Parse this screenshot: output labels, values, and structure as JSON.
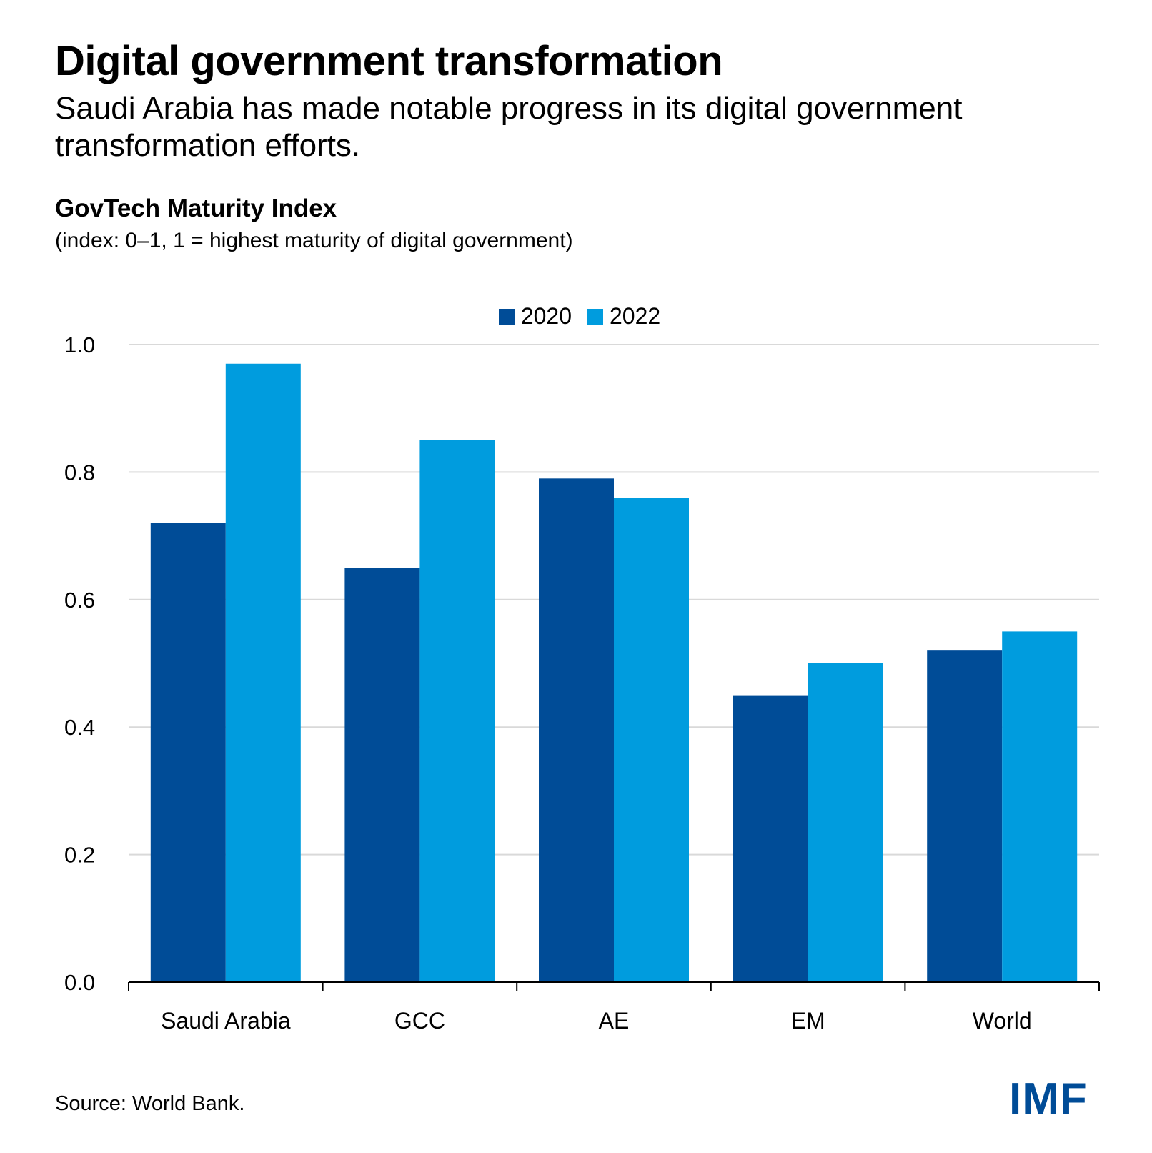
{
  "header": {
    "title": "Digital government transformation",
    "subtitle": "Saudi Arabia has made notable progress in its digital government transformation efforts."
  },
  "footer": {
    "source": "Source: World Bank.",
    "logo": "IMF"
  },
  "colors": {
    "series_2020": "#004C97",
    "series_2022": "#009CDE",
    "grid": "#D9D9D9",
    "axis": "#000000",
    "logo": "#004C97"
  },
  "chart_data": {
    "type": "bar",
    "title": "GovTech Maturity Index",
    "subtitle": "(index: 0–1, 1 = highest maturity of digital government)",
    "xlabel": "",
    "ylabel": "",
    "ylim": [
      0,
      1.0
    ],
    "yticks": [
      0.0,
      0.2,
      0.4,
      0.6,
      0.8,
      1.0
    ],
    "ytick_labels": [
      "0.0",
      "0.2",
      "0.4",
      "0.6",
      "0.8",
      "1.0"
    ],
    "grid": true,
    "legend_position": "top-center",
    "categories": [
      "Saudi Arabia",
      "GCC",
      "AE",
      "EM",
      "World"
    ],
    "series": [
      {
        "name": "2020",
        "color": "#004C97",
        "values": [
          0.72,
          0.65,
          0.79,
          0.45,
          0.52
        ]
      },
      {
        "name": "2022",
        "color": "#009CDE",
        "values": [
          0.97,
          0.85,
          0.76,
          0.5,
          0.55
        ]
      }
    ]
  }
}
